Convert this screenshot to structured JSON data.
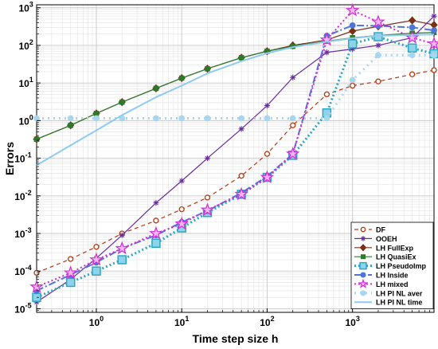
{
  "chart_data": {
    "type": "line",
    "xlabel": "Time step size h",
    "ylabel": "Errors",
    "xscale": "log",
    "yscale": "log",
    "xlim": [
      0.2,
      9000
    ],
    "ylim": [
      8e-06,
      1200
    ],
    "grid": true,
    "legend_position": "bottom-right",
    "x_ticks": [
      1,
      10,
      100,
      1000
    ],
    "x_tick_labels": [
      "10^0",
      "10^1",
      "10^2",
      "10^3"
    ],
    "y_ticks": [
      1e-05,
      0.0001,
      0.001,
      0.01,
      0.1,
      1,
      10,
      100,
      1000
    ],
    "y_tick_labels": [
      "10^-5",
      "10^-4",
      "10^-3",
      "10^-2",
      "10^-1",
      "10^0",
      "10^1",
      "10^2",
      "10^3"
    ],
    "series": [
      {
        "name": "DF",
        "color": "#b5380f",
        "dash": "5,4",
        "marker": "circle-open",
        "x": [
          0.2,
          0.5,
          1,
          2,
          5,
          10,
          20,
          50,
          100,
          200,
          500,
          1000,
          2000,
          5000,
          9000
        ],
        "y": [
          9e-05,
          0.00021,
          0.00044,
          0.001,
          0.0022,
          0.0044,
          0.009,
          0.034,
          0.13,
          0.75,
          5,
          8.5,
          11,
          17,
          22
        ]
      },
      {
        "name": "OOEH",
        "color": "#6a2c9e",
        "dash": "",
        "marker": "asterisk",
        "x": [
          0.2,
          0.5,
          1,
          2,
          5,
          10,
          20,
          50,
          100,
          200,
          500,
          1000,
          2000,
          5000,
          9000
        ],
        "y": [
          1.5e-05,
          6e-05,
          0.00022,
          0.0009,
          0.0065,
          0.025,
          0.1,
          0.6,
          2.5,
          14,
          65,
          80,
          100,
          160,
          600
        ]
      },
      {
        "name": "LH FullExp",
        "color": "#7a3018",
        "dash": "",
        "marker": "diamond",
        "x": [
          0.2,
          0.5,
          1,
          2,
          5,
          10,
          20,
          50,
          100,
          200,
          500,
          1000,
          2000,
          5000,
          9000
        ],
        "y": [
          0.32,
          0.75,
          1.55,
          3.1,
          7.2,
          13.5,
          24,
          47,
          70,
          100,
          140,
          240,
          320,
          460,
          350
        ]
      },
      {
        "name": "LH QuasiEx",
        "color": "#2a7a2a",
        "dash": "",
        "marker": "square",
        "x": [
          0.2,
          0.5,
          1,
          2,
          5,
          10,
          20,
          50,
          100,
          200,
          500,
          1000,
          2000,
          5000,
          9000
        ],
        "y": [
          0.32,
          0.75,
          1.55,
          3.1,
          7.2,
          13.5,
          24,
          47,
          70,
          95,
          130,
          160,
          185,
          210,
          220
        ]
      },
      {
        "name": "LH PseudoImp",
        "color": "#29a8c4",
        "dash": "2,3",
        "marker": "square-open",
        "x": [
          0.2,
          0.5,
          1,
          2,
          5,
          10,
          20,
          50,
          100,
          200,
          500,
          1000,
          2000,
          5000,
          9000
        ],
        "y": [
          2e-05,
          5e-05,
          0.0001,
          0.0002,
          0.00055,
          0.0014,
          0.0036,
          0.011,
          0.031,
          0.12,
          1.6,
          110,
          170,
          85,
          60
        ]
      },
      {
        "name": "LH Inside",
        "color": "#4f74d9",
        "dash": "9,3,2,3",
        "marker": "circle",
        "x": [
          0.2,
          0.5,
          1,
          2,
          5,
          10,
          20,
          50,
          100,
          200,
          500,
          1000,
          2000,
          5000,
          9000
        ],
        "y": [
          3e-05,
          8e-05,
          0.00017,
          0.0004,
          0.0009,
          0.002,
          0.004,
          0.012,
          0.033,
          0.13,
          180,
          340,
          330,
          300,
          250
        ]
      },
      {
        "name": "LH mixed",
        "color": "#d62ad8",
        "dash": "2,3",
        "marker": "star",
        "x": [
          0.2,
          0.5,
          1,
          2,
          5,
          10,
          20,
          50,
          100,
          200,
          500,
          1000,
          2000,
          5000,
          9000
        ],
        "y": [
          3.8e-05,
          9e-05,
          0.0002,
          0.0004,
          0.001,
          0.0018,
          0.0042,
          0.011,
          0.031,
          0.13,
          140,
          850,
          420,
          160,
          110
        ]
      },
      {
        "name": "LH PI NL aver",
        "color": "#a9d6ef",
        "dash": "2,5",
        "marker": "circle",
        "x": [
          0.2,
          0.5,
          1,
          2,
          5,
          10,
          20,
          50,
          100,
          200,
          500,
          1000,
          2000,
          5000,
          9000
        ],
        "y": [
          1.15,
          1.15,
          1.15,
          1.15,
          1.15,
          1.15,
          1.15,
          1.15,
          1.15,
          1.15,
          1.15,
          12,
          55,
          55,
          55
        ]
      },
      {
        "name": "LH PI NL time",
        "color": "#8ecbf0",
        "dash": "",
        "marker": "none",
        "x": [
          0.2,
          0.5,
          1,
          2,
          5,
          10,
          20,
          50,
          100,
          200,
          500,
          1000,
          2000,
          5000,
          9000
        ],
        "y": [
          0.065,
          0.22,
          0.55,
          1.4,
          4.2,
          8.5,
          18,
          38,
          62,
          90,
          125,
          155,
          180,
          190,
          195
        ]
      }
    ]
  }
}
